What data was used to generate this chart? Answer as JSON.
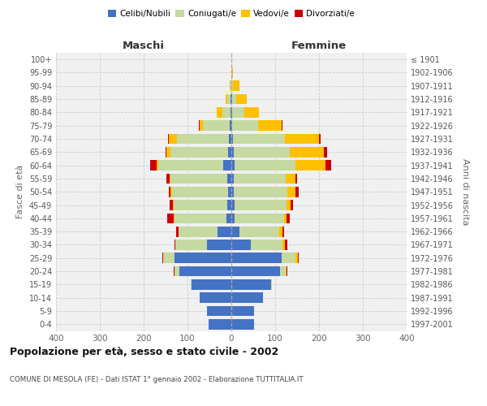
{
  "age_groups": [
    "0-4",
    "5-9",
    "10-14",
    "15-19",
    "20-24",
    "25-29",
    "30-34",
    "35-39",
    "40-44",
    "45-49",
    "50-54",
    "55-59",
    "60-64",
    "65-69",
    "70-74",
    "75-79",
    "80-84",
    "85-89",
    "90-94",
    "95-99",
    "100+"
  ],
  "birth_years": [
    "1997-2001",
    "1992-1996",
    "1987-1991",
    "1982-1986",
    "1977-1981",
    "1972-1976",
    "1967-1971",
    "1962-1966",
    "1957-1961",
    "1952-1956",
    "1947-1951",
    "1942-1946",
    "1937-1941",
    "1932-1936",
    "1927-1931",
    "1922-1926",
    "1917-1921",
    "1912-1916",
    "1907-1911",
    "1902-1906",
    "≤ 1901"
  ],
  "maschi": {
    "celibi": [
      52,
      55,
      72,
      90,
      118,
      130,
      55,
      32,
      12,
      10,
      8,
      10,
      18,
      8,
      6,
      4,
      2,
      1,
      0,
      0,
      0
    ],
    "coniugati": [
      0,
      0,
      0,
      2,
      12,
      25,
      72,
      88,
      118,
      122,
      128,
      128,
      148,
      130,
      118,
      60,
      18,
      8,
      2,
      0,
      0
    ],
    "vedovi": [
      0,
      0,
      0,
      0,
      0,
      0,
      0,
      1,
      1,
      1,
      2,
      2,
      5,
      10,
      18,
      8,
      14,
      4,
      1,
      0,
      0
    ],
    "divorziati": [
      0,
      0,
      0,
      0,
      2,
      2,
      2,
      5,
      15,
      8,
      5,
      8,
      14,
      2,
      2,
      2,
      0,
      0,
      0,
      0,
      0
    ]
  },
  "femmine": {
    "nubili": [
      52,
      52,
      72,
      90,
      112,
      115,
      45,
      18,
      8,
      8,
      6,
      6,
      8,
      5,
      4,
      2,
      1,
      1,
      0,
      0,
      0
    ],
    "coniugate": [
      0,
      0,
      0,
      2,
      12,
      32,
      72,
      92,
      112,
      118,
      122,
      118,
      138,
      128,
      118,
      60,
      28,
      10,
      4,
      2,
      0
    ],
    "vedove": [
      0,
      0,
      0,
      0,
      2,
      5,
      5,
      6,
      6,
      10,
      18,
      22,
      68,
      78,
      78,
      52,
      34,
      24,
      14,
      2,
      0
    ],
    "divorziate": [
      0,
      0,
      0,
      0,
      2,
      2,
      5,
      5,
      8,
      5,
      8,
      4,
      14,
      8,
      4,
      2,
      0,
      0,
      0,
      0,
      0
    ]
  },
  "colors": {
    "celibi": "#4472c4",
    "coniugati": "#c5d9a0",
    "vedovi": "#ffc000",
    "divorziati": "#cc0000"
  },
  "title": "Popolazione per età, sesso e stato civile - 2002",
  "subtitle": "COMUNE DI MESOLA (FE) - Dati ISTAT 1° gennaio 2002 - Elaborazione TUTTITALIA.IT",
  "xlabel_maschi": "Maschi",
  "xlabel_femmine": "Femmine",
  "ylabel_left": "Fasce di età",
  "ylabel_right": "Anni di nascita",
  "xlim": 400,
  "legend_labels": [
    "Celibi/Nubili",
    "Coniugati/e",
    "Vedovi/e",
    "Divorziati/e"
  ],
  "background_color": "#ffffff",
  "plot_bg_color": "#f0f0f0",
  "grid_color": "#cccccc",
  "bar_height": 0.78
}
